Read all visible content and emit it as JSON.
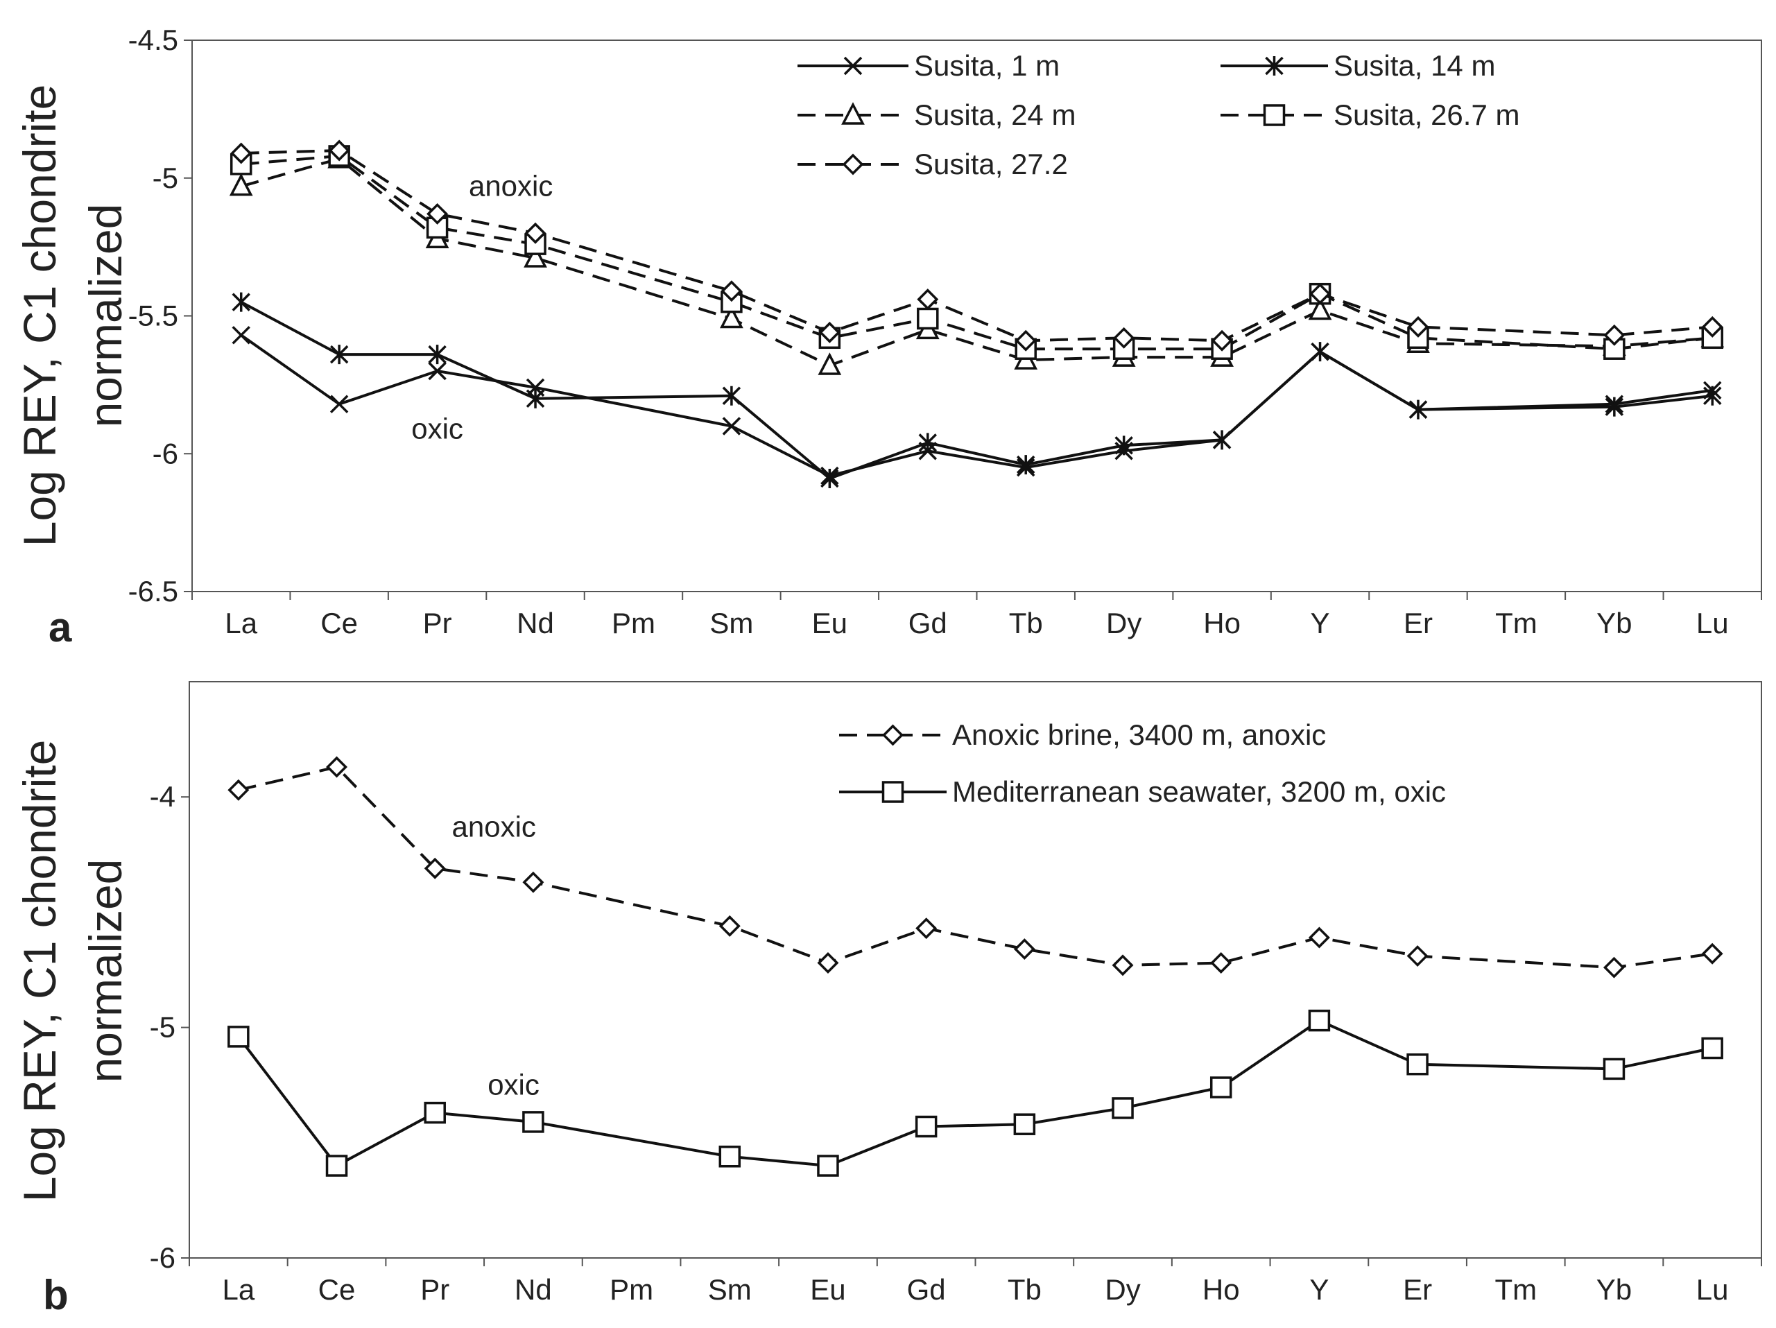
{
  "chart_data": [
    {
      "panel": "a",
      "type": "line",
      "ylabel_line1": "Log REY, C1 chondrite",
      "ylabel_line2": "normalized",
      "xlabel": "",
      "ylim": [
        -6.5,
        -4.5
      ],
      "yticks": [
        -4.5,
        -5,
        -5.5,
        -6,
        -6.5
      ],
      "ytick_labels": [
        "-4.5",
        "-5",
        "-5.5",
        "-6",
        "-6.5"
      ],
      "categories": [
        "La",
        "Ce",
        "Pr",
        "Nd",
        "Pm",
        "Sm",
        "Eu",
        "Gd",
        "Tb",
        "Dy",
        "Ho",
        "Y",
        "Er",
        "Tm",
        "Yb",
        "Lu"
      ],
      "legend_position": "top-right",
      "series": [
        {
          "name": "Susita, 1 m",
          "dash": "solid",
          "marker": "x",
          "values": [
            -5.57,
            -5.82,
            -5.7,
            -5.76,
            null,
            -5.9,
            -6.08,
            -5.99,
            -6.05,
            -5.99,
            -5.95,
            -5.63,
            -5.84,
            null,
            -5.82,
            -5.77
          ]
        },
        {
          "name": "Susita, 14 m",
          "dash": "solid",
          "marker": "star",
          "values": [
            -5.45,
            -5.64,
            -5.64,
            -5.8,
            null,
            -5.79,
            -6.09,
            -5.96,
            -6.04,
            -5.97,
            -5.95,
            -5.63,
            -5.84,
            null,
            -5.83,
            -5.79
          ]
        },
        {
          "name": "Susita, 24 m",
          "dash": "dashed",
          "marker": "triangle",
          "values": [
            -5.03,
            -4.93,
            -5.22,
            -5.29,
            null,
            -5.51,
            -5.68,
            -5.55,
            -5.66,
            -5.65,
            -5.65,
            -5.48,
            -5.6,
            null,
            -5.61,
            -5.58
          ]
        },
        {
          "name": "Susita, 26.7 m",
          "dash": "dashed",
          "marker": "square",
          "values": [
            -4.95,
            -4.92,
            -5.18,
            -5.24,
            null,
            -5.45,
            -5.58,
            -5.51,
            -5.62,
            -5.62,
            -5.62,
            -5.42,
            -5.58,
            null,
            -5.62,
            -5.58
          ]
        },
        {
          "name": "Susita, 27.2",
          "dash": "dashed",
          "marker": "diamond",
          "values": [
            -4.91,
            -4.9,
            -5.13,
            -5.2,
            null,
            -5.41,
            -5.56,
            -5.44,
            -5.59,
            -5.58,
            -5.59,
            -5.42,
            -5.54,
            null,
            -5.57,
            -5.54
          ]
        }
      ],
      "annotations": [
        {
          "text": "anoxic",
          "at_category": "Pr",
          "offset_categories": 0.75,
          "y": -5.03
        },
        {
          "text": "oxic",
          "at_category": "Nd",
          "offset_categories": -1.0,
          "y": -5.91
        }
      ]
    },
    {
      "panel": "b",
      "type": "line",
      "ylabel_line1": "Log REY, C1 chondrite",
      "ylabel_line2": "normalized",
      "xlabel": "",
      "ylim": [
        -6,
        -3.5
      ],
      "yticks": [
        -4,
        -5,
        -6
      ],
      "ytick_labels": [
        "-4",
        "-5",
        "-6"
      ],
      "categories": [
        "La",
        "Ce",
        "Pr",
        "Nd",
        "Pm",
        "Sm",
        "Eu",
        "Gd",
        "Tb",
        "Dy",
        "Ho",
        "Y",
        "Er",
        "Tm",
        "Yb",
        "Lu"
      ],
      "legend_position": "top-right",
      "series": [
        {
          "name": "Anoxic brine, 3400 m, anoxic",
          "dash": "dashed",
          "marker": "diamond",
          "values": [
            -3.97,
            -3.87,
            -4.31,
            -4.37,
            null,
            -4.56,
            -4.72,
            -4.57,
            -4.66,
            -4.73,
            -4.72,
            -4.61,
            -4.69,
            null,
            -4.74,
            -4.68
          ]
        },
        {
          "name": "Mediterranean seawater, 3200 m, oxic",
          "dash": "solid",
          "marker": "square",
          "values": [
            -5.04,
            -5.6,
            -5.37,
            -5.41,
            null,
            -5.56,
            -5.6,
            -5.43,
            -5.42,
            -5.35,
            -5.26,
            -4.97,
            -5.16,
            null,
            -5.18,
            -5.09
          ]
        }
      ],
      "annotations": [
        {
          "text": "anoxic",
          "at_category": "Pr",
          "offset_categories": 0.6,
          "y": -4.13
        },
        {
          "text": "oxic",
          "at_category": "Pr",
          "offset_categories": 0.8,
          "y": -5.25
        }
      ]
    }
  ]
}
